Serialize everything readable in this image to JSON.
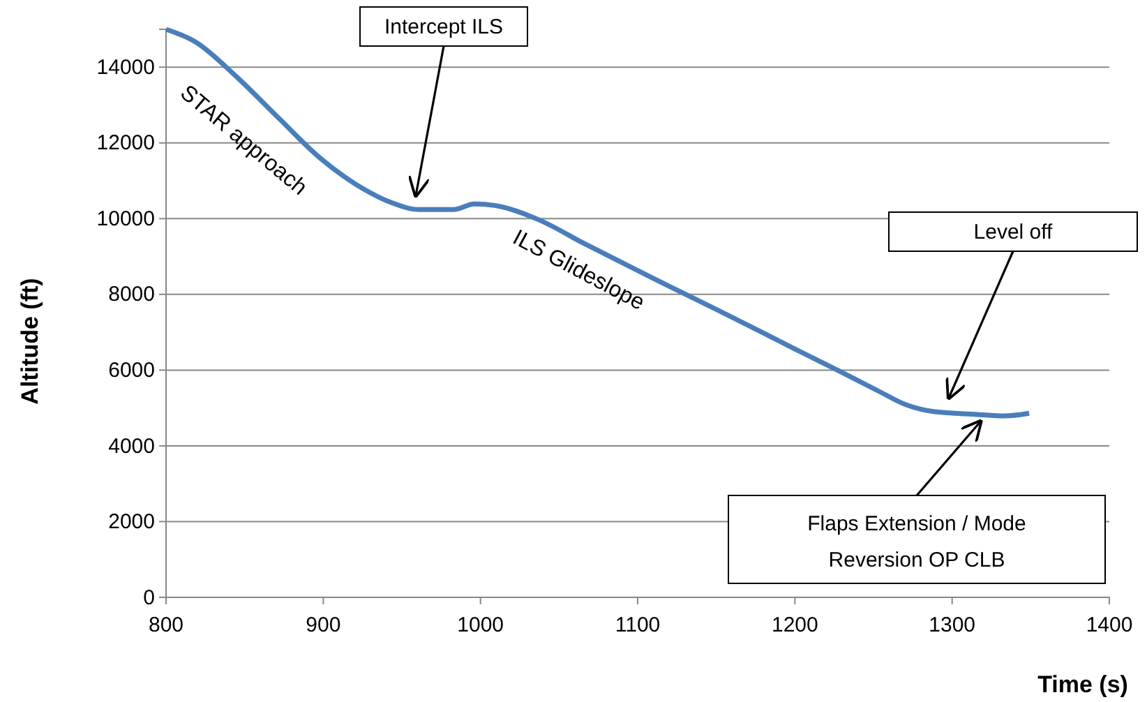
{
  "chart_data": {
    "type": "line",
    "xlabel": "Time (s)",
    "ylabel": "Altitude (ft)",
    "xlim": [
      800,
      1400
    ],
    "xticks": [
      800,
      900,
      1000,
      1100,
      1200,
      1300,
      1400
    ],
    "ylim": [
      0,
      15000
    ],
    "yticks": [
      0,
      2000,
      4000,
      6000,
      8000,
      10000,
      12000,
      14000
    ],
    "grid": "y",
    "legend": false,
    "marker": "none",
    "line_style": "solid",
    "series": [
      {
        "color": "#4a7ebb",
        "x": [
          800,
          819,
          845,
          872,
          898,
          925,
          943,
          961,
          983,
          996,
          1009,
          1036,
          1067,
          1111,
          1156,
          1200,
          1227,
          1253,
          1271,
          1289,
          1316,
          1333,
          1349
        ],
        "values": [
          15000,
          14660,
          13740,
          12640,
          11600,
          10800,
          10430,
          10240,
          10240,
          10390,
          10350,
          9990,
          9320,
          8400,
          7480,
          6560,
          6000,
          5450,
          5080,
          4900,
          4830,
          4790,
          4860
        ]
      }
    ],
    "annotations": [
      "Intercept ILS",
      "Level off",
      {
        "text": "Flaps Extension / Mode Reversion OP CLB",
        "x": 1318,
        "y": 4640
      },
      "STAR approach",
      "ILS Glideslope"
    ]
  }
}
